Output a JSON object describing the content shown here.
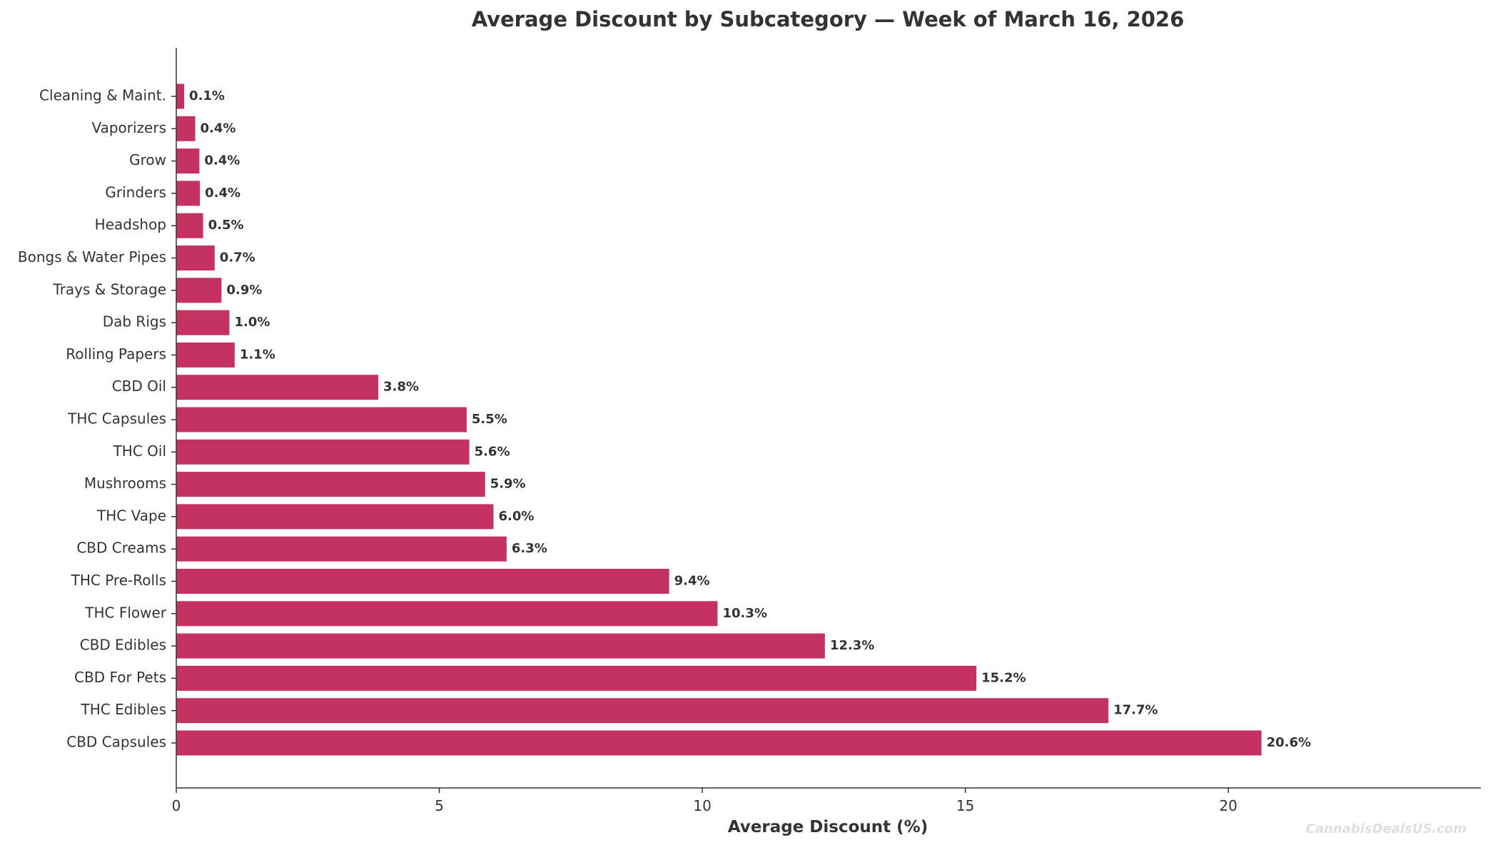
{
  "chart_data": {
    "type": "bar",
    "orientation": "horizontal",
    "title": "Average Discount by Subcategory — Week of March 16, 2026",
    "xlabel": "Average Discount (%)",
    "ylabel": "",
    "xlim": [
      0,
      24.8
    ],
    "xticks": [
      0,
      5,
      10,
      15,
      20
    ],
    "xtick_labels": [
      "0",
      "5",
      "10",
      "15",
      "20"
    ],
    "grid": false,
    "bar_color": "#c43262",
    "categories": [
      "CBD Capsules",
      "THC Edibles",
      "CBD For Pets",
      "CBD Edibles",
      "THC Flower",
      "THC Pre-Rolls",
      "CBD Creams",
      "THC Vape",
      "Mushrooms",
      "THC Oil",
      "THC Capsules",
      "CBD Oil",
      "Rolling Papers",
      "Dab Rigs",
      "Trays & Storage",
      "Bongs & Water Pipes",
      "Headshop",
      "Grinders",
      "Grow",
      "Vaporizers",
      "Cleaning & Maint."
    ],
    "values": [
      20.63,
      17.72,
      15.21,
      12.33,
      10.29,
      9.37,
      6.28,
      6.03,
      5.87,
      5.57,
      5.52,
      3.84,
      1.11,
      1.01,
      0.86,
      0.73,
      0.51,
      0.45,
      0.44,
      0.36,
      0.15
    ],
    "value_labels": [
      "20.6%",
      "17.7%",
      "15.2%",
      "12.3%",
      "10.3%",
      "9.4%",
      "6.3%",
      "6.0%",
      "5.9%",
      "5.6%",
      "5.5%",
      "3.8%",
      "1.1%",
      "1.0%",
      "0.9%",
      "0.7%",
      "0.5%",
      "0.4%",
      "0.4%",
      "0.4%",
      "0.1%"
    ]
  },
  "watermark": "CannabisDealsUS.com"
}
